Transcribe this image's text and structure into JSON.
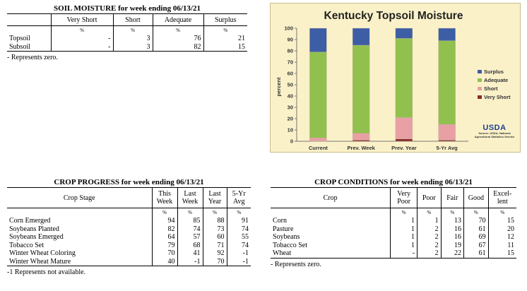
{
  "soil_moisture": {
    "title": "SOIL MOISTURE for week ending 06/13/21",
    "columns": [
      "Very Short",
      "Short",
      "Adequate",
      "Surplus"
    ],
    "unit": "%",
    "rows": [
      {
        "label": "Topsoil",
        "values": [
          "-",
          "3",
          "76",
          "21"
        ]
      },
      {
        "label": "Subsoil",
        "values": [
          "-",
          "3",
          "82",
          "15"
        ]
      }
    ],
    "footnote": "- Represents zero."
  },
  "crop_progress": {
    "title": "CROP PROGRESS for week ending 06/13/21",
    "stage_header": "Crop Stage",
    "columns": [
      "This Week",
      "Last Week",
      "Last Year",
      "5-Yr Avg"
    ],
    "unit": "%",
    "rows": [
      {
        "label": "Corn Emerged",
        "values": [
          "94",
          "85",
          "88",
          "91"
        ]
      },
      {
        "label": "Soybeans Planted",
        "values": [
          "82",
          "74",
          "73",
          "74"
        ]
      },
      {
        "label": "Soybeans Emerged",
        "values": [
          "64",
          "57",
          "60",
          "55"
        ]
      },
      {
        "label": "Tobacco Set",
        "values": [
          "79",
          "68",
          "71",
          "74"
        ]
      },
      {
        "label": "Winter Wheat Coloring",
        "values": [
          "70",
          "41",
          "92",
          "-1"
        ]
      },
      {
        "label": "Winter Wheat Mature",
        "values": [
          "40",
          "-1",
          "70",
          "-1"
        ]
      }
    ],
    "footnote": "-1 Represents not available."
  },
  "crop_conditions": {
    "title": "CROP CONDITIONS for week ending 06/13/21",
    "crop_header": "Crop",
    "columns": [
      "Very Poor",
      "Poor",
      "Fair",
      "Good",
      "Excel- lent"
    ],
    "unit": "%",
    "rows": [
      {
        "label": "Corn",
        "values": [
          "1",
          "1",
          "13",
          "70",
          "15"
        ]
      },
      {
        "label": "Pasture",
        "values": [
          "1",
          "2",
          "16",
          "61",
          "20"
        ]
      },
      {
        "label": "Soybeans",
        "values": [
          "1",
          "2",
          "16",
          "69",
          "12"
        ]
      },
      {
        "label": "Tobacco Set",
        "values": [
          "1",
          "2",
          "19",
          "67",
          "11"
        ]
      },
      {
        "label": "Wheat",
        "values": [
          "-",
          "2",
          "22",
          "61",
          "15"
        ]
      }
    ],
    "footnote": "- Represents zero."
  },
  "chart_data": {
    "type": "bar",
    "stacked": true,
    "title": "Kentucky Topsoil Moisture",
    "ylabel": "percent",
    "ylim": [
      0,
      100
    ],
    "yticks": [
      0,
      10,
      20,
      30,
      40,
      50,
      60,
      70,
      80,
      90,
      100
    ],
    "categories": [
      "Current",
      "Prev. Week",
      "Prev. Year",
      "5-Yr Avg"
    ],
    "series": [
      {
        "name": "Very Short",
        "color": "#8b2b2b",
        "values": [
          0,
          1,
          2,
          1
        ]
      },
      {
        "name": "Short",
        "color": "#e8a0a4",
        "values": [
          3,
          6,
          19,
          14
        ]
      },
      {
        "name": "Adequate",
        "color": "#92c04e",
        "values": [
          76,
          78,
          70,
          74
        ]
      },
      {
        "name": "Surplus",
        "color": "#3d5da5",
        "values": [
          21,
          15,
          9,
          11
        ]
      }
    ],
    "legend_order": [
      "Surplus",
      "Adequate",
      "Short",
      "Very Short"
    ],
    "legend_position": "right",
    "grid": false,
    "logo_text": "USDA",
    "source_text": "Source: USDA, National Agricultural Statistics Service"
  }
}
